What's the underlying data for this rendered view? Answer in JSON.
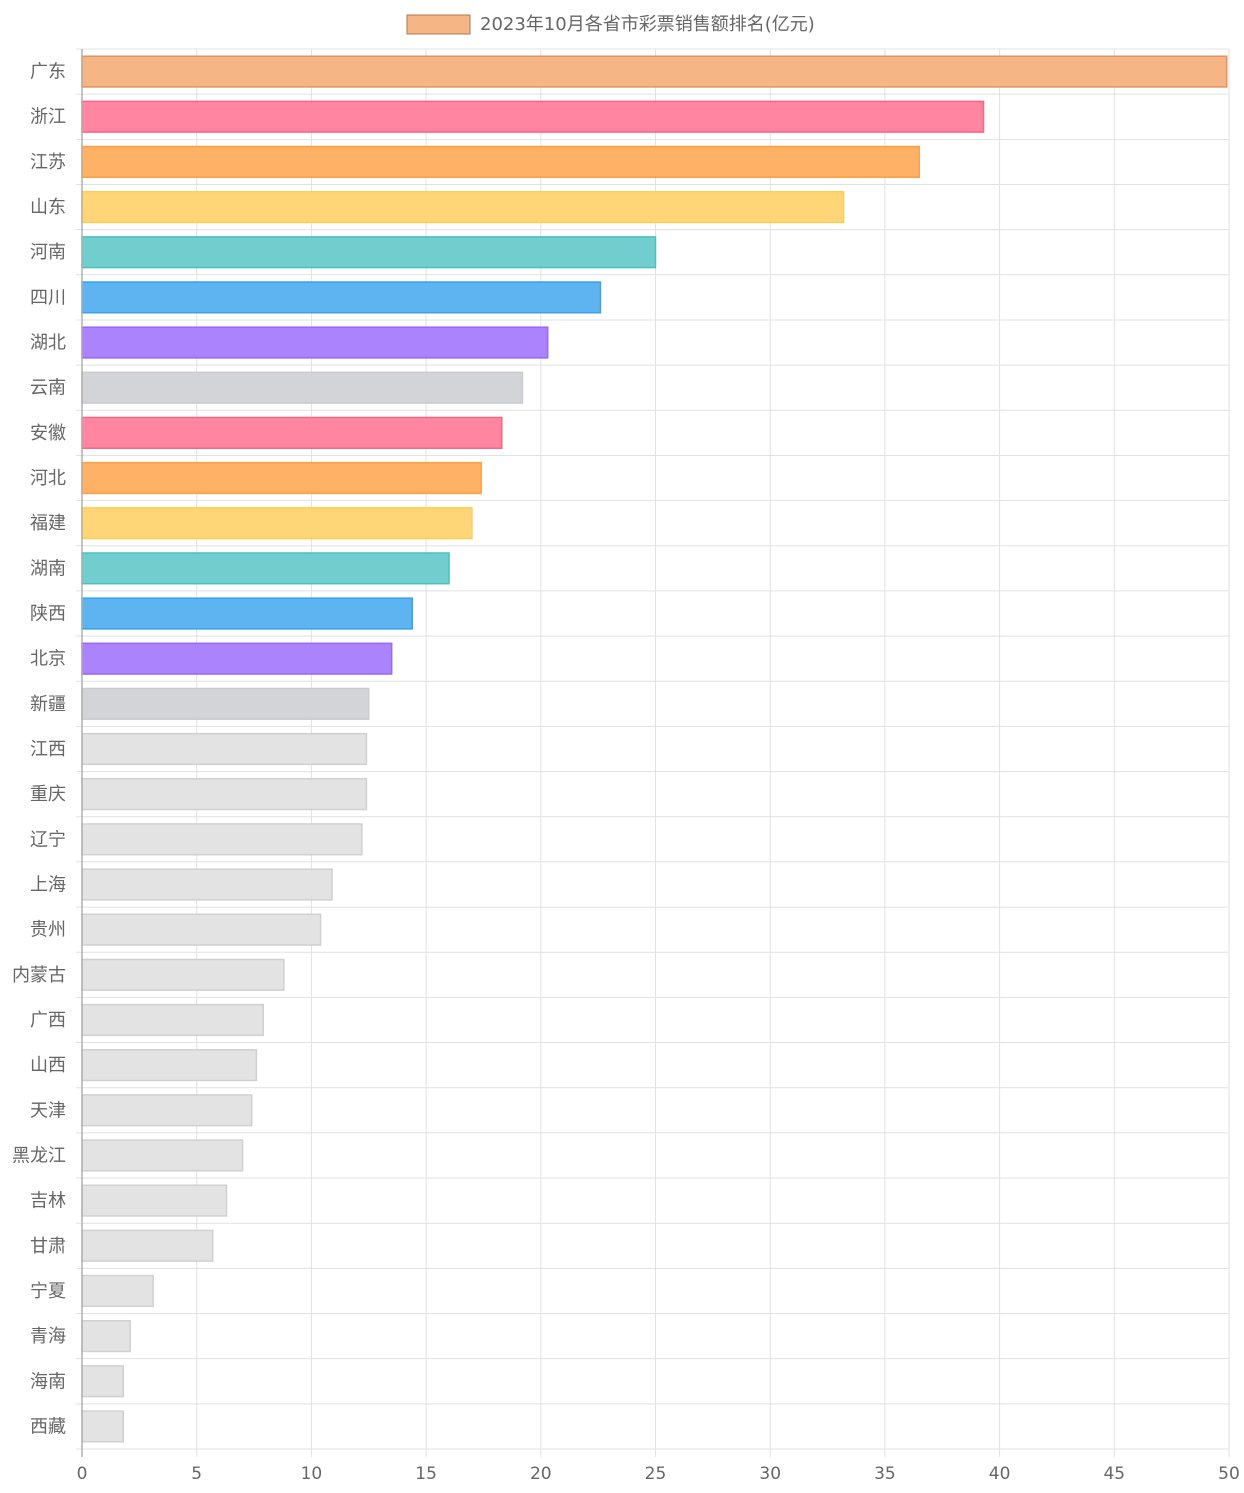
{
  "chart_data": {
    "type": "bar",
    "orientation": "horizontal",
    "legend": {
      "label": "2023年10月各省市彩票销售额排名(亿元)",
      "position": "top",
      "swatch_fill": "#f5b584",
      "swatch_stroke": "#a87850"
    },
    "categories": [
      "广东",
      "浙江",
      "江苏",
      "山东",
      "河南",
      "四川",
      "湖北",
      "云南",
      "安徽",
      "河北",
      "福建",
      "湖南",
      "陕西",
      "北京",
      "新疆",
      "江西",
      "重庆",
      "辽宁",
      "上海",
      "贵州",
      "内蒙古",
      "广西",
      "山西",
      "天津",
      "黑龙江",
      "吉林",
      "甘肃",
      "宁夏",
      "青海",
      "海南",
      "西藏"
    ],
    "values": [
      49.9,
      39.3,
      36.5,
      33.2,
      25.0,
      22.6,
      20.3,
      19.2,
      18.3,
      17.4,
      17.0,
      16.0,
      14.4,
      13.5,
      12.5,
      12.4,
      12.4,
      12.2,
      10.9,
      10.4,
      8.8,
      7.9,
      7.6,
      7.4,
      7.0,
      6.3,
      5.7,
      3.1,
      2.1,
      1.8,
      1.8
    ],
    "colors": [
      {
        "fill": "#f5b584",
        "stroke": "#dd9560"
      },
      {
        "fill": "#ff85a0",
        "stroke": "#ff6384"
      },
      {
        "fill": "#ffb266",
        "stroke": "#ff9f40"
      },
      {
        "fill": "#ffd677",
        "stroke": "#ffcd56"
      },
      {
        "fill": "#72cdce",
        "stroke": "#4bc0c0"
      },
      {
        "fill": "#5eb4f0",
        "stroke": "#36a2eb"
      },
      {
        "fill": "#ab83fd",
        "stroke": "#9966ff"
      },
      {
        "fill": "#d3d4d8",
        "stroke": "#c9cbcf"
      },
      {
        "fill": "#ff85a0",
        "stroke": "#ff6384"
      },
      {
        "fill": "#ffb266",
        "stroke": "#ff9f40"
      },
      {
        "fill": "#ffd677",
        "stroke": "#ffcd56"
      },
      {
        "fill": "#72cdce",
        "stroke": "#4bc0c0"
      },
      {
        "fill": "#5eb4f0",
        "stroke": "#36a2eb"
      },
      {
        "fill": "#ab83fd",
        "stroke": "#9966ff"
      },
      {
        "fill": "#d3d4d8",
        "stroke": "#c9cbcf"
      },
      {
        "fill": "#e3e3e3",
        "stroke": "#d0d0d0"
      },
      {
        "fill": "#e3e3e3",
        "stroke": "#d0d0d0"
      },
      {
        "fill": "#e3e3e3",
        "stroke": "#d0d0d0"
      },
      {
        "fill": "#e3e3e3",
        "stroke": "#d0d0d0"
      },
      {
        "fill": "#e3e3e3",
        "stroke": "#d0d0d0"
      },
      {
        "fill": "#e3e3e3",
        "stroke": "#d0d0d0"
      },
      {
        "fill": "#e3e3e3",
        "stroke": "#d0d0d0"
      },
      {
        "fill": "#e3e3e3",
        "stroke": "#d0d0d0"
      },
      {
        "fill": "#e3e3e3",
        "stroke": "#d0d0d0"
      },
      {
        "fill": "#e3e3e3",
        "stroke": "#d0d0d0"
      },
      {
        "fill": "#e3e3e3",
        "stroke": "#d0d0d0"
      },
      {
        "fill": "#e3e3e3",
        "stroke": "#d0d0d0"
      },
      {
        "fill": "#e3e3e3",
        "stroke": "#d0d0d0"
      },
      {
        "fill": "#e3e3e3",
        "stroke": "#d0d0d0"
      },
      {
        "fill": "#e3e3e3",
        "stroke": "#d0d0d0"
      },
      {
        "fill": "#e3e3e3",
        "stroke": "#d0d0d0"
      }
    ],
    "x_ticks": [
      0,
      5,
      10,
      15,
      20,
      25,
      30,
      35,
      40,
      45,
      50
    ],
    "xlim": [
      0,
      50
    ],
    "grid": true,
    "grid_color": "#e1e1e1",
    "xlabel": "",
    "ylabel": ""
  }
}
